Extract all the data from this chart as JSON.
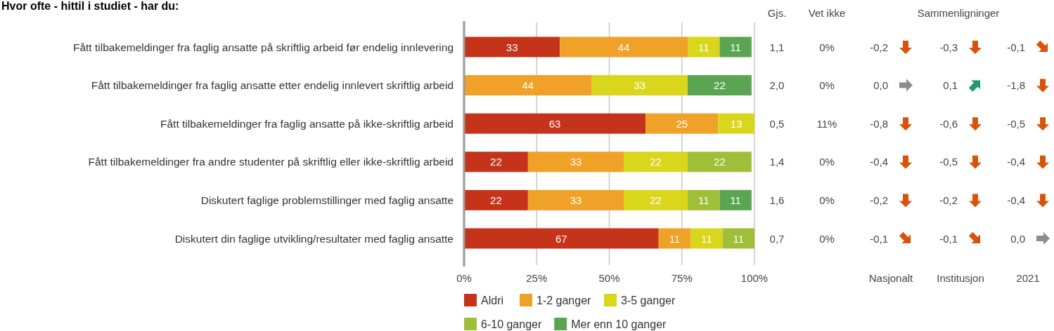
{
  "chart_data": [
    {
      "type": "bar",
      "orientation": "horizontal",
      "stacked": true,
      "title": "Hvor ofte - hittil i studiet - har du:",
      "categories": [
        "Fått tilbakemeldinger fra faglig ansatte på skriftlig arbeid før endelig innlevering",
        "Fått tilbakemeldinger fra faglig ansatte etter endelig innlevert skriftlig arbeid",
        "Fått tilbakemeldinger fra faglig ansatte på ikke-skriftlig arbeid",
        "Fått tilbakemeldinger fra andre studenter på skriftlig eller ikke-skriftlig arbeid",
        "Diskutert faglige problemstillinger med faglig ansatte",
        "Diskutert din faglige utvikling/resultater med faglig ansatte"
      ],
      "series": [
        {
          "name": "Aldri",
          "color": "#c5341a",
          "values": [
            33,
            null,
            62.5,
            22,
            22,
            67
          ],
          "value_labels": [
            "33",
            null,
            "63",
            "22",
            "22",
            "67"
          ]
        },
        {
          "name": "1-2 ganger",
          "color": "#f0a128",
          "values": [
            44,
            44,
            25,
            33,
            33,
            11
          ]
        },
        {
          "name": "3-5 ganger",
          "color": "#d9d61c",
          "values": [
            11,
            33,
            12.5,
            22,
            22,
            11
          ],
          "value_labels": [
            "11",
            "33",
            "13",
            "22",
            "22",
            "11"
          ]
        },
        {
          "name": "6-10 ganger",
          "color": "#a0bf38",
          "values": [
            null,
            null,
            null,
            22,
            11,
            11
          ]
        },
        {
          "name": "Mer enn 10 ganger",
          "color": "#5ba552",
          "values": [
            11,
            22,
            null,
            null,
            11,
            null
          ]
        }
      ],
      "xlim": [
        0,
        100
      ],
      "xticks": [
        {
          "value": 0,
          "label": "0%"
        },
        {
          "value": 25,
          "label": "25%"
        },
        {
          "value": 50,
          "label": "50%"
        },
        {
          "value": 75,
          "label": "75%"
        },
        {
          "value": 100,
          "label": "100%"
        }
      ],
      "grid": "x",
      "legend": "bottom",
      "data_labels": true
    },
    {
      "type": "other",
      "title": "Sammenligninger",
      "categories": [
        "Gjs.",
        "Vet ikke",
        "Nasjonalt",
        "Institusjon",
        "2021"
      ],
      "annotations": [
        "1,1",
        "0%",
        "-0,2",
        "-0,3",
        "-0,1",
        "2,0",
        "0%",
        "0,0",
        "0,1",
        "-1,8",
        "0,5",
        "11%",
        "-0,8",
        "-0,6",
        "-0,5",
        "1,4",
        "0%",
        "-0,4",
        "-0,5",
        "-0,4",
        "1,6",
        "0%",
        "-0,2",
        "-0,2",
        "-0,4",
        "0,7",
        "0%",
        "-0,1",
        "-0,1",
        "0,0"
      ]
    }
  ]
}
